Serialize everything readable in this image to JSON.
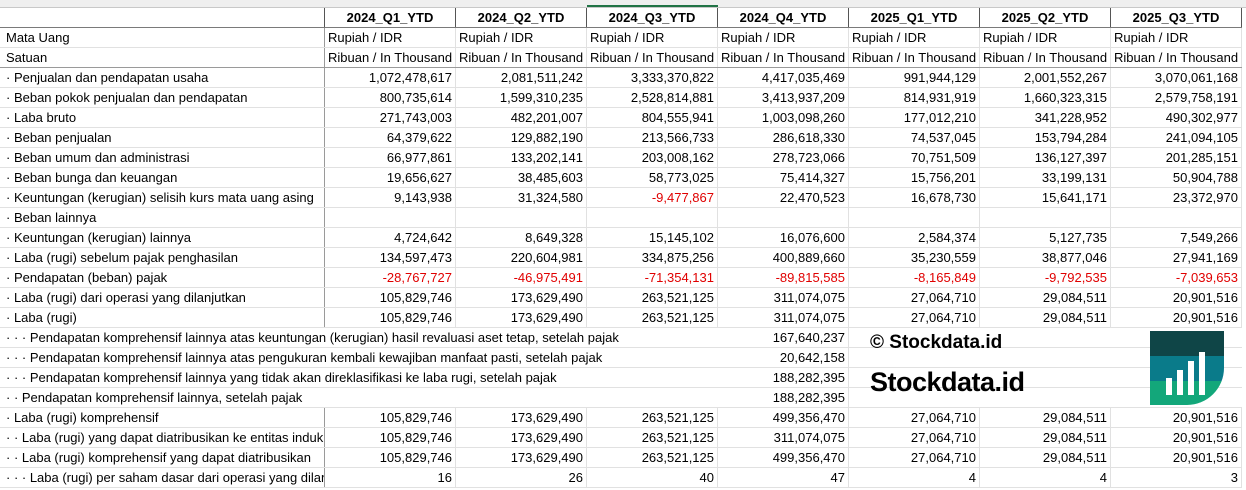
{
  "headers": [
    "",
    "2024_Q1_YTD",
    "2024_Q2_YTD",
    "2024_Q3_YTD",
    "2024_Q4_YTD",
    "2025_Q1_YTD",
    "2025_Q2_YTD",
    "2025_Q3_YTD"
  ],
  "currency_row": {
    "label": "Mata Uang",
    "value": "Rupiah / IDR"
  },
  "unit_row": {
    "label": "Satuan",
    "value": "Ribuan / In Thousand"
  },
  "rows": [
    {
      "label": "· Penjualan dan pendapatan usaha",
      "values": [
        "1,072,478,617",
        "2,081,511,242",
        "3,333,370,822",
        "4,417,035,469",
        "991,944,129",
        "2,001,552,267",
        "3,070,061,168"
      ]
    },
    {
      "label": "· Beban pokok penjualan dan pendapatan",
      "values": [
        "800,735,614",
        "1,599,310,235",
        "2,528,814,881",
        "3,413,937,209",
        "814,931,919",
        "1,660,323,315",
        "2,579,758,191"
      ]
    },
    {
      "label": "· Laba bruto",
      "values": [
        "271,743,003",
        "482,201,007",
        "804,555,941",
        "1,003,098,260",
        "177,012,210",
        "341,228,952",
        "490,302,977"
      ]
    },
    {
      "label": "· Beban penjualan",
      "values": [
        "64,379,622",
        "129,882,190",
        "213,566,733",
        "286,618,330",
        "74,537,045",
        "153,794,284",
        "241,094,105"
      ]
    },
    {
      "label": "· Beban umum dan administrasi",
      "values": [
        "66,977,861",
        "133,202,141",
        "203,008,162",
        "278,723,066",
        "70,751,509",
        "136,127,397",
        "201,285,151"
      ]
    },
    {
      "label": "· Beban bunga dan keuangan",
      "values": [
        "19,656,627",
        "38,485,603",
        "58,773,025",
        "75,414,327",
        "15,756,201",
        "33,199,131",
        "50,904,788"
      ]
    },
    {
      "label": "· Keuntungan (kerugian) selisih kurs mata uang asing",
      "values": [
        "9,143,938",
        "31,324,580",
        "-9,477,867",
        "22,470,523",
        "16,678,730",
        "15,641,171",
        "23,372,970"
      ]
    },
    {
      "label": "· Beban lainnya",
      "values": [
        "",
        "",
        "",
        "",
        "",
        "",
        ""
      ]
    },
    {
      "label": "· Keuntungan (kerugian) lainnya",
      "values": [
        "4,724,642",
        "8,649,328",
        "15,145,102",
        "16,076,600",
        "2,584,374",
        "5,127,735",
        "7,549,266"
      ]
    },
    {
      "label": "· Laba (rugi) sebelum pajak penghasilan",
      "values": [
        "134,597,473",
        "220,604,981",
        "334,875,256",
        "400,889,660",
        "35,230,559",
        "38,877,046",
        "27,941,169"
      ]
    },
    {
      "label": "· Pendapatan (beban) pajak",
      "values": [
        "-28,767,727",
        "-46,975,491",
        "-71,354,131",
        "-89,815,585",
        "-8,165,849",
        "-9,792,535",
        "-7,039,653"
      ]
    },
    {
      "label": "· Laba (rugi) dari operasi yang dilanjutkan",
      "values": [
        "105,829,746",
        "173,629,490",
        "263,521,125",
        "311,074,075",
        "27,064,710",
        "29,084,511",
        "20,901,516"
      ]
    },
    {
      "label": "· Laba (rugi)",
      "values": [
        "105,829,746",
        "173,629,490",
        "263,521,125",
        "311,074,075",
        "27,064,710",
        "29,084,511",
        "20,901,516"
      ]
    },
    {
      "label": "· · · Pendapatan komprehensif lainnya atas keuntungan (kerugian) hasil revaluasi aset tetap, setelah pajak",
      "long": true,
      "values": [
        "",
        "",
        "",
        "167,640,237",
        "",
        "",
        ""
      ]
    },
    {
      "label": "· · · Pendapatan komprehensif lainnya atas pengukuran kembali kewajiban manfaat pasti, setelah pajak",
      "long": true,
      "values": [
        "",
        "",
        "",
        "20,642,158",
        "",
        "",
        ""
      ]
    },
    {
      "label": "· · · Pendapatan komprehensif lainnya yang tidak akan direklasifikasi ke laba rugi, setelah pajak",
      "long": true,
      "values": [
        "",
        "",
        "",
        "188,282,395",
        "",
        "",
        ""
      ]
    },
    {
      "label": "· · Pendapatan komprehensif lainnya, setelah pajak",
      "long": true,
      "values": [
        "",
        "",
        "",
        "188,282,395",
        "",
        "",
        ""
      ]
    },
    {
      "label": "· Laba (rugi) komprehensif",
      "values": [
        "105,829,746",
        "173,629,490",
        "263,521,125",
        "499,356,470",
        "27,064,710",
        "29,084,511",
        "20,901,516"
      ]
    },
    {
      "label": "· · Laba (rugi) yang dapat diatribusikan ke entitas induk",
      "values": [
        "105,829,746",
        "173,629,490",
        "263,521,125",
        "311,074,075",
        "27,064,710",
        "29,084,511",
        "20,901,516"
      ]
    },
    {
      "label": "· · Laba (rugi) komprehensif yang dapat diatribusikan",
      "values": [
        "105,829,746",
        "173,629,490",
        "263,521,125",
        "499,356,470",
        "27,064,710",
        "29,084,511",
        "20,901,516"
      ]
    },
    {
      "label": "· · · Laba (rugi) per saham dasar dari operasi yang dilanjutkan",
      "values": [
        "16",
        "26",
        "40",
        "47",
        "4",
        "4",
        "3"
      ]
    }
  ],
  "watermark": {
    "small": "© Stockdata.id",
    "large": "Stockdata.id"
  },
  "colors": {
    "negative": "#e00000",
    "selected": "#217346"
  }
}
